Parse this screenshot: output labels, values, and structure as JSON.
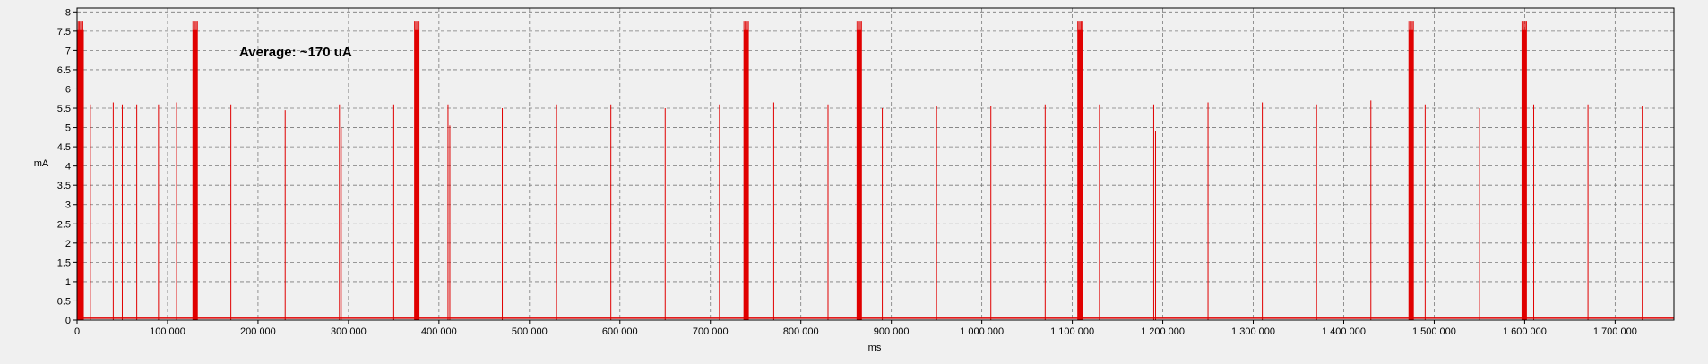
{
  "chart_data": {
    "type": "line",
    "title": "",
    "xlabel": "ms",
    "ylabel": "mA",
    "xlim": [
      0,
      1765000
    ],
    "ylim": [
      0,
      8.1
    ],
    "grid": true,
    "x_ticks": [
      0,
      100000,
      200000,
      300000,
      400000,
      500000,
      600000,
      700000,
      800000,
      900000,
      1000000,
      1100000,
      1200000,
      1300000,
      1400000,
      1500000,
      1600000,
      1700000
    ],
    "x_tick_labels": [
      "0",
      "100 000",
      "200 000",
      "300 000",
      "400 000",
      "500 000",
      "600 000",
      "700 000",
      "800 000",
      "900 000",
      "1 000 000",
      "1 100 000",
      "1 200 000",
      "1 300 000",
      "1 400 000",
      "1 500 000",
      "1 600 000",
      "1 700 000"
    ],
    "y_ticks": [
      0,
      0.5,
      1,
      1.5,
      2,
      2.5,
      3,
      3.5,
      4,
      4.5,
      5,
      5.5,
      6,
      6.5,
      7,
      7.5,
      8
    ],
    "y_tick_labels": [
      "0",
      "0.5",
      "1",
      "1.5",
      "2",
      "2.5",
      "3",
      "3.5",
      "4",
      "4.5",
      "5",
      "5.5",
      "6",
      "6.5",
      "7",
      "7.5",
      "8"
    ],
    "annotation": "Average: ~170 uA",
    "series": [
      {
        "color": "#e00000",
        "baseline": 0.05,
        "spikes": [
          {
            "x": 15000,
            "y": 5.6
          },
          {
            "x": 40000,
            "y": 5.65
          },
          {
            "x": 50000,
            "y": 5.6
          },
          {
            "x": 66000,
            "y": 5.6
          },
          {
            "x": 90000,
            "y": 5.6
          },
          {
            "x": 110000,
            "y": 5.65
          },
          {
            "x": 170000,
            "y": 5.6
          },
          {
            "x": 230000,
            "y": 5.45
          },
          {
            "x": 290000,
            "y": 5.6
          },
          {
            "x": 292000,
            "y": 5.0
          },
          {
            "x": 350000,
            "y": 5.6
          },
          {
            "x": 410000,
            "y": 5.6
          },
          {
            "x": 412000,
            "y": 5.05
          },
          {
            "x": 470000,
            "y": 5.5
          },
          {
            "x": 530000,
            "y": 5.6
          },
          {
            "x": 590000,
            "y": 5.6
          },
          {
            "x": 650000,
            "y": 5.5
          },
          {
            "x": 710000,
            "y": 5.6
          },
          {
            "x": 770000,
            "y": 5.65
          },
          {
            "x": 830000,
            "y": 5.6
          },
          {
            "x": 890000,
            "y": 5.5
          },
          {
            "x": 950000,
            "y": 5.55
          },
          {
            "x": 1010000,
            "y": 5.55
          },
          {
            "x": 1070000,
            "y": 5.6
          },
          {
            "x": 1130000,
            "y": 5.6
          },
          {
            "x": 1190000,
            "y": 5.6
          },
          {
            "x": 1192000,
            "y": 4.9
          },
          {
            "x": 1250000,
            "y": 5.65
          },
          {
            "x": 1310000,
            "y": 5.65
          },
          {
            "x": 1370000,
            "y": 5.6
          },
          {
            "x": 1430000,
            "y": 5.7
          },
          {
            "x": 1490000,
            "y": 5.6
          },
          {
            "x": 1550000,
            "y": 5.5
          },
          {
            "x": 1610000,
            "y": 5.6
          },
          {
            "x": 1670000,
            "y": 5.6
          },
          {
            "x": 1730000,
            "y": 5.55
          }
        ],
        "bursts": [
          {
            "x_start": 0,
            "x_end": 7000,
            "y": 7.8
          },
          {
            "x_start": 128000,
            "x_end": 133000,
            "y": 7.8
          },
          {
            "x_start": 373000,
            "x_end": 378000,
            "y": 7.8
          },
          {
            "x_start": 737000,
            "x_end": 742000,
            "y": 7.8
          },
          {
            "x_start": 862000,
            "x_end": 867000,
            "y": 7.8
          },
          {
            "x_start": 1106000,
            "x_end": 1111000,
            "y": 7.8
          },
          {
            "x_start": 1472000,
            "x_end": 1477000,
            "y": 7.8
          },
          {
            "x_start": 1597000,
            "x_end": 1602000,
            "y": 7.8
          }
        ]
      }
    ]
  }
}
